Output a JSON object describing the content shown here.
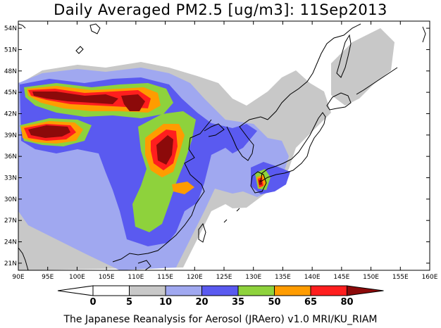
{
  "title": "Daily Averaged PM2.5 [ug/m3]: 11Sep2013",
  "footer": "The Japanese Reanalysis for Aerosol (JRAero) v1.0 MRI/KU_RIAM",
  "map": {
    "lon_range": [
      90,
      160
    ],
    "lat_range": [
      20,
      55
    ],
    "lon_ticks": [
      "90E",
      "95E",
      "100E",
      "105E",
      "110E",
      "115E",
      "120E",
      "125E",
      "130E",
      "135E",
      "140E",
      "145E",
      "150E",
      "155E",
      "160E"
    ],
    "lat_ticks": [
      "21N",
      "24N",
      "27N",
      "30N",
      "33N",
      "36N",
      "39N",
      "42N",
      "45N",
      "48N",
      "51N",
      "54N"
    ],
    "colors": {
      "c5": "#c8c8c8",
      "c10": "#a0a8f0",
      "c20": "#5a5af0",
      "c35": "#8ed23c",
      "c50": "#ff9c00",
      "c65": "#ff1e1e",
      "c80": "#8c0a0a"
    }
  },
  "colorbar": {
    "labels": [
      "0",
      "5",
      "10",
      "20",
      "35",
      "50",
      "65",
      "80"
    ],
    "colors": [
      "#ffffff",
      "#ffffff",
      "#c8c8c8",
      "#a0a8f0",
      "#5a5af0",
      "#8ed23c",
      "#ff9c00",
      "#ff1e1e",
      "#8c0a0a"
    ]
  }
}
